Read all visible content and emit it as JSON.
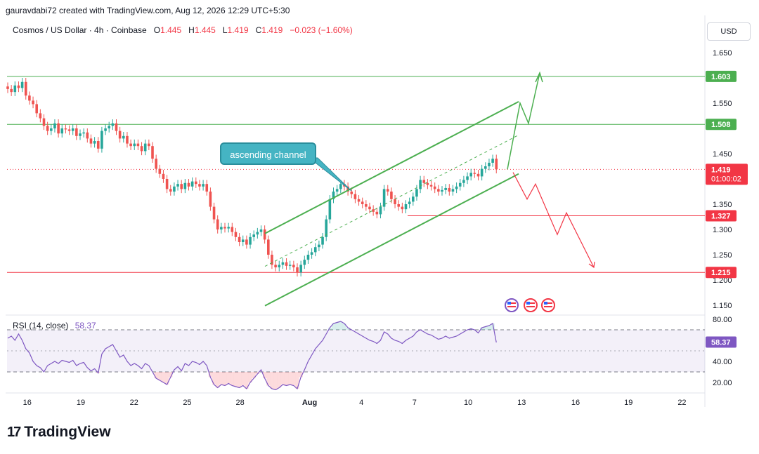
{
  "header": {
    "credit": "gauravdabi72 created with TradingView.com, Aug 12, 2026 12:29 UTC+5:30"
  },
  "legend": {
    "symbol": "Cosmos / US Dollar · 4h · Coinbase",
    "o_label": "O",
    "o": "1.445",
    "h_label": "H",
    "h": "1.445",
    "l_label": "L",
    "l": "1.419",
    "c_label": "C",
    "c": "1.419",
    "change": "−0.023 (−1.60%)"
  },
  "currency": "USD",
  "annotation": {
    "text": "ascending channel"
  },
  "brand": {
    "name": "TradingView"
  },
  "colors": {
    "up": "#26a69a",
    "down": "#ef5350",
    "green_line": "#4caf50",
    "red_line": "#f23645",
    "rsi": "#7e57c2",
    "callout": "#45b4c3"
  },
  "chart_data": {
    "type": "candlestick",
    "price_axis": {
      "ticks": [
        "1.650",
        "1.550",
        "1.450",
        "1.350",
        "1.300",
        "1.250",
        "1.200",
        "1.150"
      ]
    },
    "x_axis": {
      "ticks": [
        "16",
        "19",
        "22",
        "25",
        "28",
        "Aug",
        "4",
        "7",
        "10",
        "13",
        "16",
        "19",
        "22"
      ]
    },
    "levels": [
      {
        "price": 1.603,
        "label": "1.603",
        "color": "#4caf50"
      },
      {
        "price": 1.508,
        "label": "1.508",
        "color": "#4caf50"
      },
      {
        "price": 1.327,
        "label": "1.327",
        "color": "#f23645"
      },
      {
        "price": 1.215,
        "label": "1.215",
        "color": "#f23645"
      }
    ],
    "last_price": {
      "label": "1.419",
      "countdown": "01:00:02"
    },
    "candles_close": [
      1.578,
      1.572,
      1.585,
      1.58,
      1.592,
      1.565,
      1.555,
      1.548,
      1.53,
      1.52,
      1.505,
      1.495,
      1.5,
      1.51,
      1.49,
      1.5,
      1.498,
      1.495,
      1.5,
      1.485,
      1.49,
      1.492,
      1.48,
      1.47,
      1.475,
      1.46,
      1.495,
      1.5,
      1.505,
      1.51,
      1.495,
      1.48,
      1.485,
      1.47,
      1.465,
      1.47,
      1.465,
      1.455,
      1.47,
      1.465,
      1.44,
      1.42,
      1.41,
      1.4,
      1.38,
      1.375,
      1.385,
      1.39,
      1.38,
      1.392,
      1.385,
      1.395,
      1.39,
      1.385,
      1.39,
      1.375,
      1.345,
      1.32,
      1.3,
      1.305,
      1.302,
      1.305,
      1.295,
      1.285,
      1.275,
      1.28,
      1.27,
      1.285,
      1.29,
      1.295,
      1.3,
      1.28,
      1.25,
      1.23,
      1.225,
      1.23,
      1.235,
      1.228,
      1.23,
      1.225,
      1.215,
      1.23,
      1.24,
      1.25,
      1.255,
      1.265,
      1.27,
      1.285,
      1.32,
      1.36,
      1.375,
      1.38,
      1.39,
      1.385,
      1.375,
      1.37,
      1.36,
      1.355,
      1.35,
      1.345,
      1.34,
      1.335,
      1.33,
      1.345,
      1.38,
      1.375,
      1.36,
      1.35,
      1.345,
      1.34,
      1.35,
      1.355,
      1.365,
      1.38,
      1.398,
      1.392,
      1.388,
      1.385,
      1.38,
      1.375,
      1.378,
      1.382,
      1.375,
      1.38,
      1.385,
      1.392,
      1.398,
      1.405,
      1.412,
      1.41,
      1.405,
      1.42,
      1.425,
      1.432,
      1.44,
      1.419
    ],
    "channel": {
      "upper": [
        [
          1.292,
          1.553
        ]
      ],
      "lower": [
        [
          1.149,
          1.41
        ]
      ],
      "mid_dashed": [
        [
          1.227,
          1.487
        ]
      ]
    },
    "forecast_up": [
      1.419,
      1.492,
      1.55,
      1.51,
      1.61
    ],
    "forecast_down": [
      1.413,
      1.36,
      1.39,
      1.29,
      1.333,
      1.225
    ],
    "rsi": {
      "label": "RSI (14, close)",
      "value": "58.37",
      "ticks": [
        "80.00",
        "40.00",
        "20.00"
      ],
      "upper_band": 70,
      "lower_band": 30,
      "values": [
        62,
        64,
        60,
        66,
        60,
        52,
        48,
        40,
        36,
        34,
        30,
        36,
        38,
        40,
        38,
        41,
        40,
        39,
        41,
        36,
        38,
        39,
        34,
        31,
        33,
        29,
        47,
        52,
        54,
        56,
        50,
        44,
        46,
        40,
        36,
        38,
        36,
        33,
        38,
        36,
        30,
        24,
        22,
        20,
        18,
        25,
        32,
        35,
        31,
        38,
        36,
        40,
        39,
        37,
        40,
        36,
        25,
        18,
        15,
        18,
        17,
        19,
        17,
        16,
        15,
        17,
        14,
        20,
        24,
        28,
        32,
        24,
        17,
        14,
        13,
        15,
        18,
        17,
        18,
        17,
        14,
        25,
        32,
        40,
        46,
        52,
        56,
        60,
        66,
        72,
        76,
        77,
        78,
        76,
        72,
        70,
        68,
        66,
        64,
        62,
        60,
        59,
        57,
        60,
        68,
        66,
        62,
        60,
        59,
        57,
        60,
        62,
        64,
        68,
        70,
        68,
        66,
        65,
        63,
        61,
        62,
        64,
        62,
        63,
        64,
        66,
        68,
        70,
        71,
        70,
        67,
        72,
        73,
        74,
        76,
        58
      ]
    }
  }
}
